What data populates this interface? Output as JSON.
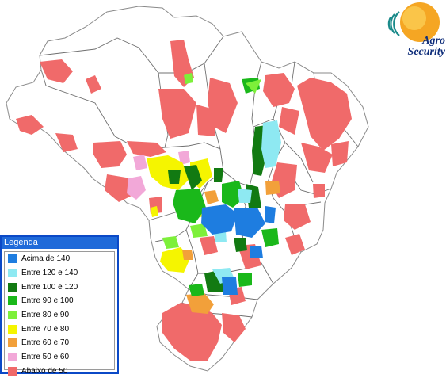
{
  "logo": {
    "line1": "Agro",
    "line2": "Security"
  },
  "legend": {
    "title": "Legenda",
    "items": [
      {
        "label": "Acima de 140",
        "color": "#1e7de0"
      },
      {
        "label": "Entre 120 e 140",
        "color": "#8ee9f2"
      },
      {
        "label": "Entre 100 e 120",
        "color": "#127a12"
      },
      {
        "label": "Entre 90 e 100",
        "color": "#1ab81a"
      },
      {
        "label": "Entre 80 e 90",
        "color": "#7df03a"
      },
      {
        "label": "Entre 70 e 80",
        "color": "#f5f500"
      },
      {
        "label": "Entre 60 e 70",
        "color": "#f2a03a"
      },
      {
        "label": "Entre 50 e 60",
        "color": "#f2a8d8"
      },
      {
        "label": "Abaixo de 50",
        "color": "#f06a6a"
      }
    ]
  }
}
